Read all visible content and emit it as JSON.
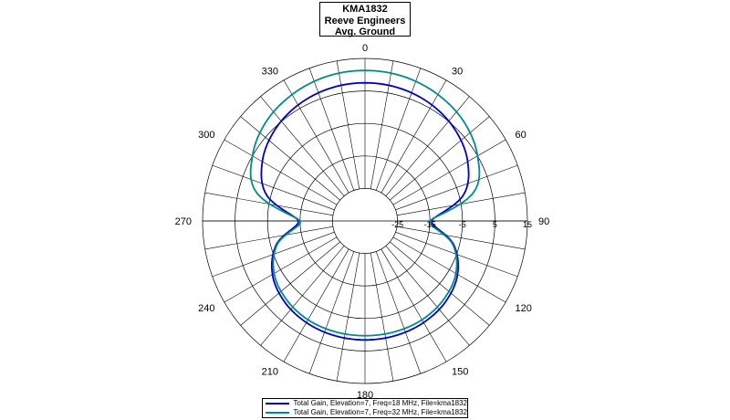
{
  "title": {
    "line1": "KMA1832",
    "line2": "Reeve Engineers",
    "line3": "Avg. Ground"
  },
  "chart_data": {
    "type": "polar-line",
    "angle_labels": [
      "0",
      "30",
      "60",
      "90",
      "120",
      "150",
      "180",
      "210",
      "240",
      "270",
      "300",
      "330"
    ],
    "angle_step_deg": 10,
    "radial_range": [
      -35,
      15
    ],
    "radial_tick_labels": [
      "-25",
      "-15",
      "-5",
      "5",
      "15"
    ],
    "radial_tick_values": [
      -25,
      -15,
      -5,
      5,
      15
    ],
    "grid": true,
    "legend_position": "bottom",
    "series": [
      {
        "name": "Total Gain, Elevation=7, Freq=18 MHz, File=kma1832",
        "color": "#0000cc",
        "azimuth_deg": [
          0,
          15,
          30,
          45,
          60,
          75,
          90,
          105,
          120,
          135,
          150,
          165,
          180,
          195,
          210,
          225,
          240,
          255,
          270,
          285,
          300,
          315,
          330,
          345
        ],
        "gain_dbi": [
          7.5,
          7.2,
          6.2,
          4.4,
          1.5,
          -3.5,
          -14.5,
          -6.7,
          -2.1,
          0.1,
          1.1,
          1.5,
          1.6,
          1.5,
          1.1,
          0.1,
          -2.1,
          -6.7,
          -14.5,
          -3.5,
          1.5,
          4.4,
          6.2,
          7.2
        ]
      },
      {
        "name": "Total Gain, Elevation=7, Freq=32 MHz, File=kma1832",
        "color": "#008b8b",
        "azimuth_deg": [
          0,
          15,
          30,
          45,
          60,
          75,
          90,
          105,
          120,
          135,
          150,
          165,
          180,
          195,
          210,
          225,
          240,
          255,
          270,
          285,
          300,
          315,
          330,
          345
        ],
        "gain_dbi": [
          11.3,
          11.0,
          9.9,
          8.1,
          5.0,
          -0.2,
          -15.0,
          -7.0,
          -2.7,
          -0.8,
          0.1,
          0.3,
          0.3,
          0.3,
          0.1,
          -0.8,
          -2.7,
          -7.0,
          -15.0,
          -0.2,
          5.0,
          8.1,
          9.9,
          11.0
        ]
      }
    ]
  }
}
